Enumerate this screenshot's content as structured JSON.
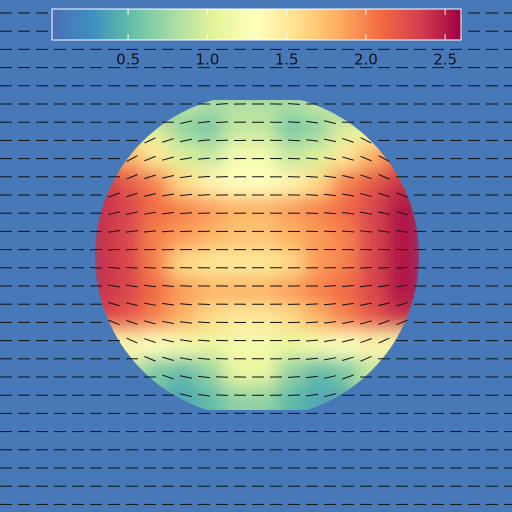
{
  "chart_data": {
    "type": "field",
    "colormap": [
      "#4a6fb5",
      "#3f8fbf",
      "#66c2a5",
      "#abdda4",
      "#e6f598",
      "#ffffbf",
      "#fee08b",
      "#fdae61",
      "#f46d43",
      "#d53e4f",
      "#9e0142"
    ],
    "clim": [
      0.02,
      2.6
    ],
    "cticks": [
      0.5,
      {
        "value": 1,
        "label": "1.0"
      },
      1.5,
      {
        "value": 2,
        "label": "2.0"
      },
      2.5
    ],
    "background_value": 0.1,
    "grid": [
      [
        null,
        null,
        null,
        0.9,
        0.8,
        0.8,
        0.8,
        0.8,
        0.9,
        null,
        null,
        null
      ],
      [
        null,
        1.2,
        1.0,
        0.7,
        0.6,
        0.9,
        0.9,
        0.6,
        0.7,
        1.0,
        1.2,
        null
      ],
      [
        2.0,
        1.8,
        1.5,
        1.0,
        0.9,
        1.2,
        1.2,
        0.9,
        1.0,
        1.5,
        1.8,
        2.1
      ],
      [
        2.4,
        2.2,
        2.0,
        1.6,
        1.4,
        1.3,
        1.3,
        1.4,
        1.6,
        2.0,
        2.2,
        2.4
      ],
      [
        2.4,
        2.3,
        2.1,
        2.0,
        1.9,
        1.8,
        1.8,
        1.9,
        2.0,
        2.1,
        2.3,
        2.5
      ],
      [
        2.4,
        2.3,
        2.0,
        1.9,
        1.8,
        1.7,
        1.7,
        1.8,
        1.9,
        2.0,
        2.3,
        2.5
      ],
      [
        2.4,
        2.3,
        2.0,
        1.6,
        1.5,
        1.5,
        1.5,
        1.6,
        1.9,
        2.0,
        2.3,
        2.5
      ],
      [
        2.4,
        2.3,
        2.1,
        1.9,
        1.8,
        1.8,
        1.8,
        1.9,
        2.0,
        2.1,
        2.3,
        2.5
      ],
      [
        2.3,
        2.2,
        2.0,
        1.8,
        1.6,
        1.5,
        1.5,
        1.6,
        1.8,
        2.0,
        2.2,
        2.4
      ],
      [
        1.3,
        1.4,
        1.3,
        1.2,
        1.1,
        1.2,
        1.2,
        1.1,
        1.2,
        1.3,
        1.4,
        1.4
      ],
      [
        null,
        0.9,
        0.6,
        0.5,
        0.7,
        1.1,
        1.1,
        0.7,
        0.5,
        0.6,
        0.9,
        null
      ],
      [
        null,
        null,
        null,
        0.4,
        0.5,
        0.7,
        0.7,
        0.5,
        0.4,
        null,
        null,
        null
      ]
    ]
  }
}
